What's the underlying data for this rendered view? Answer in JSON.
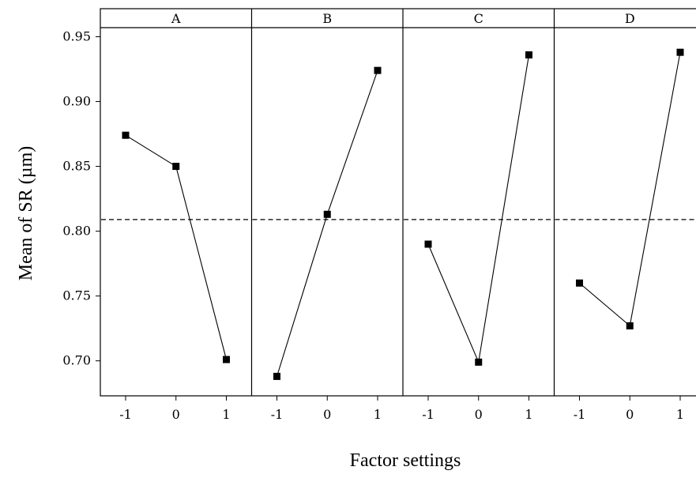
{
  "chart_data": {
    "type": "line",
    "ylabel": "Mean of SR (µm)",
    "xlabel": "Factor settings",
    "x_ticks": [
      "-1",
      "0",
      "1"
    ],
    "y_ticks": [
      "0.70",
      "0.75",
      "0.80",
      "0.85",
      "0.90",
      "0.95"
    ],
    "ylim": [
      0.673,
      0.957
    ],
    "reference_mean": 0.809,
    "reference_line_style": "dashed",
    "grid": false,
    "legend": "none",
    "panels": [
      {
        "label": "A",
        "x": [
          -1,
          0,
          1
        ],
        "values": [
          0.874,
          0.85,
          0.701
        ]
      },
      {
        "label": "B",
        "x": [
          -1,
          0,
          1
        ],
        "values": [
          0.688,
          0.813,
          0.924
        ]
      },
      {
        "label": "C",
        "x": [
          -1,
          0,
          1
        ],
        "values": [
          0.79,
          0.699,
          0.936
        ]
      },
      {
        "label": "D",
        "x": [
          -1,
          0,
          1
        ],
        "values": [
          0.76,
          0.727,
          0.938
        ]
      }
    ],
    "colors": {
      "line": "#000000",
      "marker": "#000000",
      "frame": "#000000",
      "background": "#ffffff"
    }
  }
}
